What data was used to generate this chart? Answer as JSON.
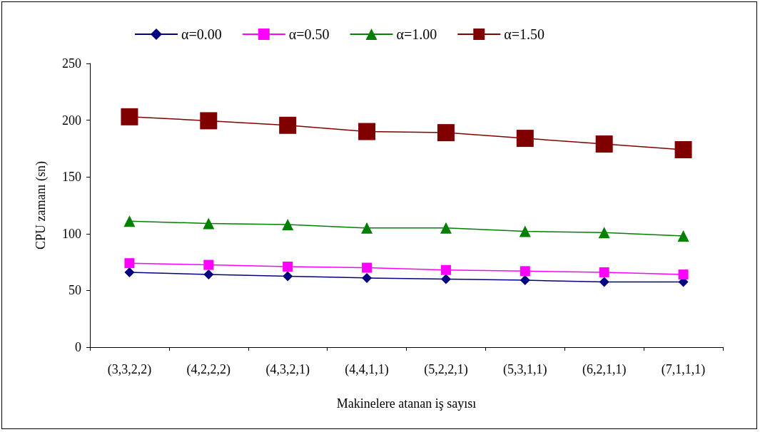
{
  "chart_data": {
    "type": "line",
    "xlabel": "Makinelere atanan iş sayısı",
    "ylabel": "CPU zamanı (sn)",
    "categories": [
      "(3,3,2,2)",
      "(4,2,2,2)",
      "(4,3,2,1)",
      "(4,4,1,1)",
      "(5,2,2,1)",
      "(5,3,1,1)",
      "(6,2,1,1)",
      "(7,1,1,1)"
    ],
    "series": [
      {
        "name": "α=0.00",
        "color": "#000080",
        "marker": "diamond",
        "values": [
          66,
          64,
          62.5,
          61,
          60,
          59,
          57.5,
          57.5
        ]
      },
      {
        "name": "α=0.50",
        "color": "#ff00ff",
        "marker": "square",
        "values": [
          74,
          72.5,
          71,
          70,
          68,
          67,
          66,
          64
        ]
      },
      {
        "name": "α=1.00",
        "color": "#008000",
        "marker": "triangle",
        "values": [
          111,
          109,
          108,
          105,
          105,
          102,
          101,
          98
        ]
      },
      {
        "name": "α=1.50",
        "color": "#800000",
        "marker": "square",
        "values": [
          203,
          199.5,
          195.5,
          190,
          189,
          184,
          179,
          174
        ]
      }
    ],
    "ylim": [
      0,
      250
    ],
    "yticks": [
      0,
      50,
      100,
      150,
      200,
      250
    ],
    "grid": false,
    "legend": "top",
    "line_style": "solid"
  }
}
